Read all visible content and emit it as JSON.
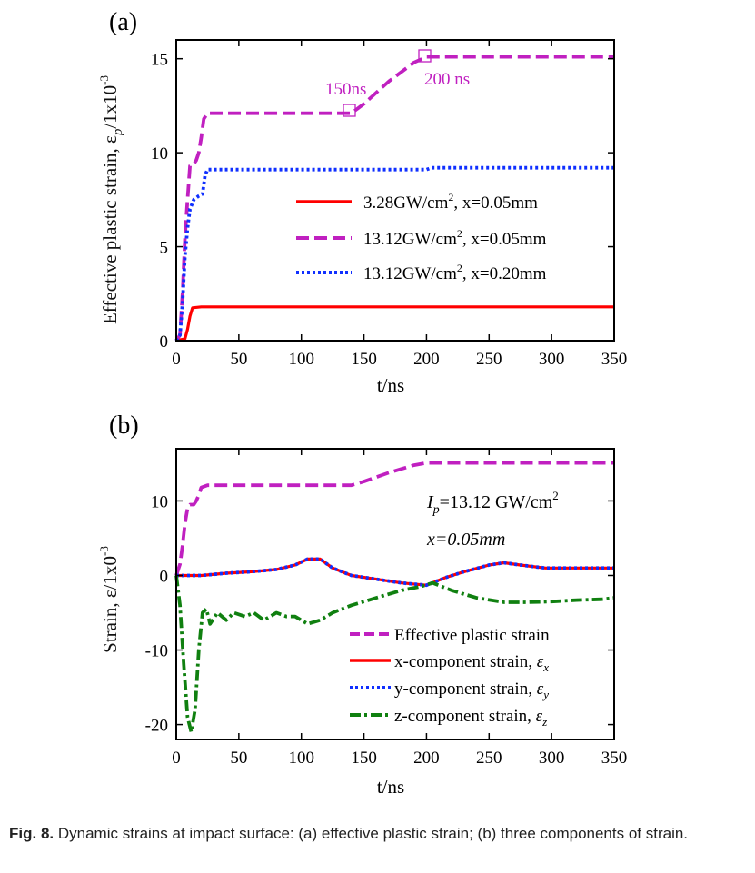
{
  "chart_data": [
    {
      "panel_label": "(a)",
      "type": "line",
      "xlabel": "t/ns",
      "ylabel": "Effective plastic strain, ε",
      "ylabel_sub": "p",
      "ylabel_unit": "/1x10",
      "ylabel_exp": "-3",
      "xlim": [
        0,
        350
      ],
      "ylim": [
        0,
        16
      ],
      "xticks": [
        0,
        50,
        100,
        150,
        200,
        250,
        300,
        350
      ],
      "yticks": [
        0,
        5,
        10,
        15
      ],
      "grid": false,
      "legend_position": "middle-right",
      "annotations": [
        {
          "text": "150ns",
          "x": 140,
          "y": 12.1
        },
        {
          "text": "200 ns",
          "x": 201,
          "y": 15.1
        }
      ],
      "series": [
        {
          "name": "3.28GW/cm², x=0.05mm",
          "legend_base": "3.28GW/cm",
          "legend_sup": "2",
          "legend_tail": ", x=0.05mm",
          "color": "#ff0000",
          "style": "solid",
          "points": [
            [
              0,
              0
            ],
            [
              7,
              0.1
            ],
            [
              9,
              0.6
            ],
            [
              11,
              1.3
            ],
            [
              13,
              1.75
            ],
            [
              20,
              1.8
            ],
            [
              350,
              1.8
            ]
          ]
        },
        {
          "name": "13.12GW/cm², x=0.05mm",
          "legend_base": "13.12GW/cm",
          "legend_sup": "2",
          "legend_tail": ", x=0.05mm",
          "color": "#c020c0",
          "style": "dashed",
          "points": [
            [
              0,
              0
            ],
            [
              3,
              0.3
            ],
            [
              5,
              2.5
            ],
            [
              7,
              5.5
            ],
            [
              9,
              7.5
            ],
            [
              11,
              9.3
            ],
            [
              14,
              9.4
            ],
            [
              16,
              9.6
            ],
            [
              18,
              10.0
            ],
            [
              20,
              10.8
            ],
            [
              22,
              11.8
            ],
            [
              25,
              12.1
            ],
            [
              140,
              12.1
            ],
            [
              150,
              12.6
            ],
            [
              160,
              13.2
            ],
            [
              170,
              13.8
            ],
            [
              180,
              14.3
            ],
            [
              190,
              14.8
            ],
            [
              200,
              15.1
            ],
            [
              350,
              15.1
            ]
          ]
        },
        {
          "name": "13.12GW/cm², x=0.20mm",
          "legend_base": "13.12GW/cm",
          "legend_sup": "2",
          "legend_tail": ", x=0.20mm",
          "color": "#1030ff",
          "style": "dotted",
          "points": [
            [
              0,
              0
            ],
            [
              3,
              0.3
            ],
            [
              5,
              2
            ],
            [
              7,
              4.5
            ],
            [
              9,
              6
            ],
            [
              11,
              7.0
            ],
            [
              14,
              7.5
            ],
            [
              18,
              7.7
            ],
            [
              21,
              7.8
            ],
            [
              23,
              8.8
            ],
            [
              25,
              9.1
            ],
            [
              200,
              9.1
            ],
            [
              204,
              9.2
            ],
            [
              350,
              9.2
            ]
          ]
        }
      ]
    },
    {
      "panel_label": "(b)",
      "type": "line",
      "xlabel": "t/ns",
      "ylabel": "Strain, ε/1x0",
      "ylabel_exp": "-3",
      "xlim": [
        0,
        350
      ],
      "ylim": [
        -22,
        17
      ],
      "xticks": [
        0,
        50,
        100,
        150,
        200,
        250,
        300,
        350
      ],
      "yticks": [
        -20,
        -10,
        0,
        10
      ],
      "grid": false,
      "legend_position": "bottom-right",
      "annotations": [
        {
          "text_main": "I",
          "text_sub": "p",
          "text_rest": "=13.12 GW/cm",
          "text_sup": "2"
        },
        {
          "text": "x=0.05mm"
        }
      ],
      "series": [
        {
          "name": "Effective plastic strain",
          "legend_text": "Effective plastic strain",
          "color": "#c020c0",
          "style": "dashed",
          "points": [
            [
              0,
              0
            ],
            [
              3,
              1.5
            ],
            [
              5,
              4
            ],
            [
              7,
              7
            ],
            [
              9,
              9
            ],
            [
              11,
              9.5
            ],
            [
              14,
              9.5
            ],
            [
              16,
              10
            ],
            [
              18,
              10.8
            ],
            [
              20,
              11.8
            ],
            [
              25,
              12.1
            ],
            [
              140,
              12.1
            ],
            [
              150,
              12.6
            ],
            [
              160,
              13.2
            ],
            [
              170,
              13.8
            ],
            [
              180,
              14.3
            ],
            [
              190,
              14.8
            ],
            [
              200,
              15.1
            ],
            [
              350,
              15.1
            ]
          ]
        },
        {
          "name": "x-component strain, εx",
          "legend_text": "x-component strain, ",
          "legend_symbol": "ε",
          "legend_sub": "x",
          "color": "#ff0000",
          "style": "solid",
          "points": [
            [
              0,
              0
            ],
            [
              20,
              0
            ],
            [
              40,
              0.3
            ],
            [
              60,
              0.5
            ],
            [
              80,
              0.8
            ],
            [
              95,
              1.4
            ],
            [
              105,
              2.2
            ],
            [
              115,
              2.2
            ],
            [
              125,
              1.0
            ],
            [
              140,
              0
            ],
            [
              160,
              -0.5
            ],
            [
              180,
              -1.0
            ],
            [
              200,
              -1.3
            ],
            [
              215,
              -0.3
            ],
            [
              230,
              0.5
            ],
            [
              250,
              1.4
            ],
            [
              262,
              1.7
            ],
            [
              275,
              1.4
            ],
            [
              295,
              1.0
            ],
            [
              350,
              1.0
            ]
          ]
        },
        {
          "name": "y-component strain, εy",
          "legend_text": "y-component strain, ",
          "legend_symbol": "ε",
          "legend_sub": "y",
          "color": "#1030ff",
          "style": "dotted",
          "points": [
            [
              0,
              0
            ],
            [
              20,
              0
            ],
            [
              40,
              0.3
            ],
            [
              60,
              0.5
            ],
            [
              80,
              0.8
            ],
            [
              95,
              1.4
            ],
            [
              105,
              2.2
            ],
            [
              115,
              2.2
            ],
            [
              125,
              1.0
            ],
            [
              140,
              0
            ],
            [
              160,
              -0.5
            ],
            [
              180,
              -1.0
            ],
            [
              200,
              -1.3
            ],
            [
              215,
              -0.3
            ],
            [
              230,
              0.5
            ],
            [
              250,
              1.4
            ],
            [
              262,
              1.7
            ],
            [
              275,
              1.4
            ],
            [
              295,
              1.0
            ],
            [
              350,
              1.0
            ]
          ]
        },
        {
          "name": "z-component strain, εz",
          "legend_text": "z-component strain, ",
          "legend_symbol": "ε",
          "legend_sub": "z",
          "color": "#108010",
          "style": "dashdot",
          "points": [
            [
              0,
              0
            ],
            [
              3,
              -4
            ],
            [
              6,
              -12
            ],
            [
              9,
              -19
            ],
            [
              12,
              -21
            ],
            [
              15,
              -18
            ],
            [
              18,
              -10
            ],
            [
              21,
              -5
            ],
            [
              24,
              -4.5
            ],
            [
              27,
              -6.5
            ],
            [
              33,
              -5
            ],
            [
              40,
              -6
            ],
            [
              46,
              -5
            ],
            [
              55,
              -5.5
            ],
            [
              62,
              -5
            ],
            [
              70,
              -6
            ],
            [
              80,
              -5
            ],
            [
              88,
              -5.5
            ],
            [
              95,
              -5.5
            ],
            [
              105,
              -6.5
            ],
            [
              115,
              -6
            ],
            [
              125,
              -5
            ],
            [
              140,
              -4
            ],
            [
              160,
              -3
            ],
            [
              180,
              -2
            ],
            [
              195,
              -1.5
            ],
            [
              205,
              -1.0
            ],
            [
              220,
              -2.0
            ],
            [
              240,
              -3.0
            ],
            [
              262,
              -3.6
            ],
            [
              280,
              -3.6
            ],
            [
              300,
              -3.5
            ],
            [
              320,
              -3.3
            ],
            [
              340,
              -3.2
            ],
            [
              350,
              -3.0
            ]
          ]
        }
      ]
    }
  ],
  "caption": {
    "label": "Fig. 8.",
    "text": " Dynamic strains at impact surface: (a) effective plastic strain; (b) three components of strain."
  }
}
